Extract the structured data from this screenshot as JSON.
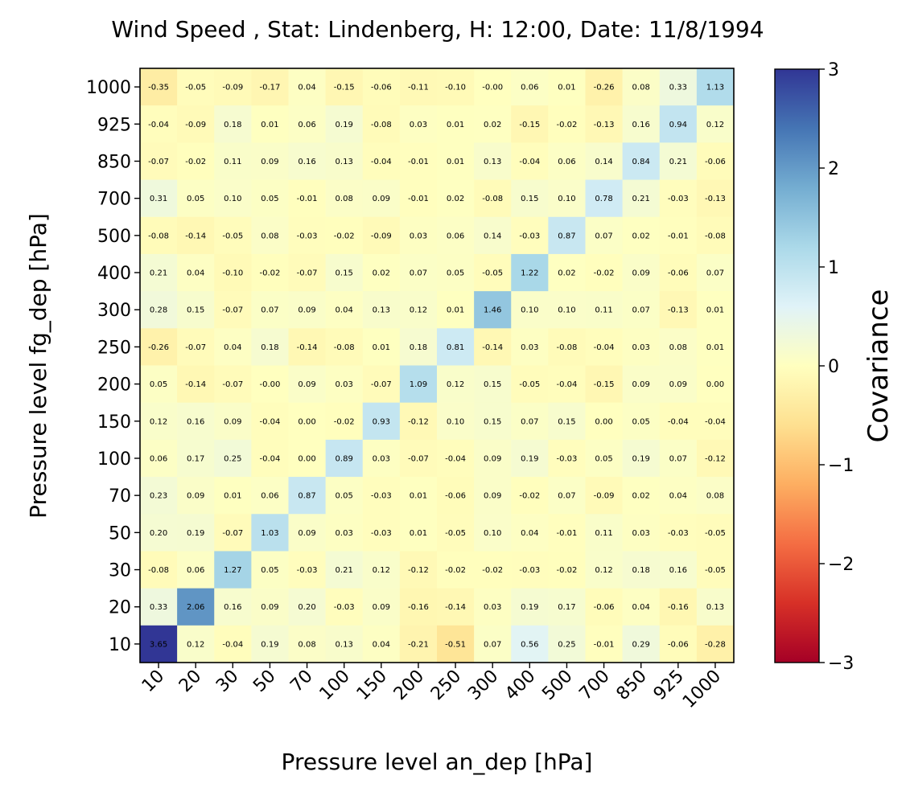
{
  "chart_data": {
    "type": "heatmap",
    "title": "Wind Speed , Stat: Lindenberg, H: 12:00, Date: 11/8/1994",
    "xlabel": "Pressure level an_dep [hPa]",
    "ylabel": "Pressure level fg_dep [hPa]",
    "x_categories": [
      "10",
      "20",
      "30",
      "50",
      "70",
      "100",
      "150",
      "200",
      "250",
      "300",
      "400",
      "500",
      "700",
      "850",
      "925",
      "1000"
    ],
    "y_categories_top_to_bottom": [
      "1000",
      "925",
      "850",
      "700",
      "500",
      "400",
      "300",
      "250",
      "200",
      "150",
      "100",
      "70",
      "50",
      "30",
      "20",
      "10"
    ],
    "values_top_to_bottom": [
      [
        "-0.35",
        "-0.05",
        "-0.09",
        "-0.17",
        "0.04",
        "-0.15",
        "-0.06",
        "-0.11",
        "-0.10",
        "-0.00",
        "0.06",
        "0.01",
        "-0.26",
        "0.08",
        "0.33",
        "1.13"
      ],
      [
        "-0.04",
        "-0.09",
        "0.18",
        "0.01",
        "0.06",
        "0.19",
        "-0.08",
        "0.03",
        "0.01",
        "0.02",
        "-0.15",
        "-0.02",
        "-0.13",
        "0.16",
        "0.94",
        "0.12"
      ],
      [
        "-0.07",
        "-0.02",
        "0.11",
        "0.09",
        "0.16",
        "0.13",
        "-0.04",
        "-0.01",
        "0.01",
        "0.13",
        "-0.04",
        "0.06",
        "0.14",
        "0.84",
        "0.21",
        "-0.06"
      ],
      [
        "0.31",
        "0.05",
        "0.10",
        "0.05",
        "-0.01",
        "0.08",
        "0.09",
        "-0.01",
        "0.02",
        "-0.08",
        "0.15",
        "0.10",
        "0.78",
        "0.21",
        "-0.03",
        "-0.13"
      ],
      [
        "-0.08",
        "-0.14",
        "-0.05",
        "0.08",
        "-0.03",
        "-0.02",
        "-0.09",
        "0.03",
        "0.06",
        "0.14",
        "-0.03",
        "0.87",
        "0.07",
        "0.02",
        "-0.01",
        "-0.08"
      ],
      [
        "0.21",
        "0.04",
        "-0.10",
        "-0.02",
        "-0.07",
        "0.15",
        "0.02",
        "0.07",
        "0.05",
        "-0.05",
        "1.22",
        "0.02",
        "-0.02",
        "0.09",
        "-0.06",
        "0.07"
      ],
      [
        "0.28",
        "0.15",
        "-0.07",
        "0.07",
        "0.09",
        "0.04",
        "0.13",
        "0.12",
        "0.01",
        "1.46",
        "0.10",
        "0.10",
        "0.11",
        "0.07",
        "-0.13",
        "0.01"
      ],
      [
        "-0.26",
        "-0.07",
        "0.04",
        "0.18",
        "-0.14",
        "-0.08",
        "0.01",
        "0.18",
        "0.81",
        "-0.14",
        "0.03",
        "-0.08",
        "-0.04",
        "0.03",
        "0.08",
        "0.01"
      ],
      [
        "0.05",
        "-0.14",
        "-0.07",
        "-0.00",
        "0.09",
        "0.03",
        "-0.07",
        "1.09",
        "0.12",
        "0.15",
        "-0.05",
        "-0.04",
        "-0.15",
        "0.09",
        "0.09",
        "0.00"
      ],
      [
        "0.12",
        "0.16",
        "0.09",
        "-0.04",
        "0.00",
        "-0.02",
        "0.93",
        "-0.12",
        "0.10",
        "0.15",
        "0.07",
        "0.15",
        "0.00",
        "0.05",
        "-0.04",
        "-0.04"
      ],
      [
        "0.06",
        "0.17",
        "0.25",
        "-0.04",
        "0.00",
        "0.89",
        "0.03",
        "-0.07",
        "-0.04",
        "0.09",
        "0.19",
        "-0.03",
        "0.05",
        "0.19",
        "0.07",
        "-0.12"
      ],
      [
        "0.23",
        "0.09",
        "0.01",
        "0.06",
        "0.87",
        "0.05",
        "-0.03",
        "0.01",
        "-0.06",
        "0.09",
        "-0.02",
        "0.07",
        "-0.09",
        "0.02",
        "0.04",
        "0.08"
      ],
      [
        "0.20",
        "0.19",
        "-0.07",
        "1.03",
        "0.09",
        "0.03",
        "-0.03",
        "0.01",
        "-0.05",
        "0.10",
        "0.04",
        "-0.01",
        "0.11",
        "0.03",
        "-0.03",
        "-0.05"
      ],
      [
        "-0.08",
        "0.06",
        "1.27",
        "0.05",
        "-0.03",
        "0.21",
        "0.12",
        "-0.12",
        "-0.02",
        "-0.02",
        "-0.03",
        "-0.02",
        "0.12",
        "0.18",
        "0.16",
        "-0.05"
      ],
      [
        "0.33",
        "2.06",
        "0.16",
        "0.09",
        "0.20",
        "-0.03",
        "0.09",
        "-0.16",
        "-0.14",
        "0.03",
        "0.19",
        "0.17",
        "-0.06",
        "0.04",
        "-0.16",
        "0.13"
      ],
      [
        "3.65",
        "0.12",
        "-0.04",
        "0.19",
        "0.08",
        "0.13",
        "0.04",
        "-0.21",
        "-0.51",
        "0.07",
        "0.56",
        "0.25",
        "-0.01",
        "0.29",
        "-0.06",
        "-0.28"
      ]
    ],
    "colorbar": {
      "label": "Covariance",
      "range": [
        -3,
        3
      ],
      "ticks": [
        3,
        2,
        1,
        0,
        -1,
        -2,
        -3
      ],
      "tick_labels": [
        "3",
        "2",
        "1",
        "0",
        "−1",
        "−2",
        "−3"
      ],
      "colormap": "RdYlBu"
    }
  }
}
